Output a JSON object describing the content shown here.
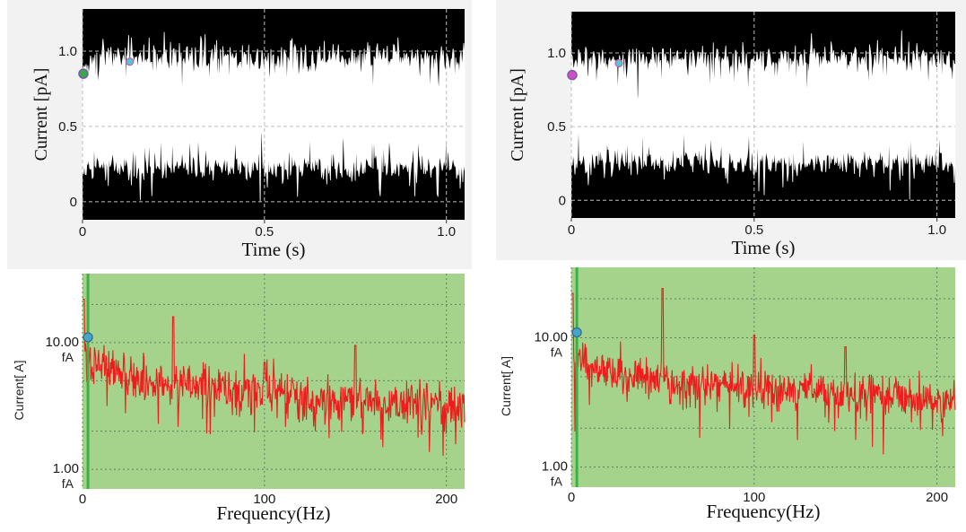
{
  "chart_data": [
    {
      "type": "line",
      "title": "",
      "xlabel": "Time (s)",
      "ylabel": "Current [pA]",
      "xlim": [
        0,
        1.05
      ],
      "ylim": [
        -0.12,
        1.28
      ],
      "xticks": [
        "0",
        "0.5",
        "1.0"
      ],
      "yticks": [
        "0",
        "0.5",
        "1.0"
      ],
      "xtick_values": [
        0,
        0.5,
        1.0
      ],
      "ytick_values": [
        0,
        0.5,
        1.0
      ],
      "grid": true,
      "trace": {
        "open_level": 0.95,
        "closed_level": 0.05,
        "open_noise": 0.16,
        "closed_noise": 0.15,
        "open_events": [
          [
            0.0,
            1.05
          ]
        ],
        "closed_band_shown": true
      },
      "colors": {
        "background": "#000000",
        "trace": "#ffffff",
        "grid": "#bdbdbd",
        "cursor_a": "#3aa84a",
        "cursor_b": "#53c7d8"
      }
    },
    {
      "type": "line",
      "title": "",
      "xlabel": "Time (s)",
      "ylabel": "Current [pA]",
      "xlim": [
        0,
        1.05
      ],
      "ylim": [
        -0.12,
        1.28
      ],
      "xticks": [
        "0",
        "0.5",
        "1.0"
      ],
      "yticks": [
        "0",
        "0.5",
        "1.0"
      ],
      "xtick_values": [
        0,
        0.5,
        1.0
      ],
      "ytick_values": [
        0,
        0.5,
        1.0
      ],
      "grid": true,
      "trace": {
        "open_level": 0.95,
        "closed_level": 0.08,
        "open_noise": 0.15,
        "closed_noise": 0.16,
        "open_events": [
          [
            0.0,
            1.05
          ]
        ],
        "closed_band_shown": true
      },
      "colors": {
        "background": "#000000",
        "trace": "#ffffff",
        "grid": "#bdbdbd",
        "cursor_a": "#d04fc4",
        "cursor_b": "#53c7d8"
      }
    },
    {
      "type": "line",
      "title": "",
      "xlabel": "Frequency(Hz)",
      "ylabel": "Current[ A]",
      "scale_y": "log",
      "xlim": [
        0,
        210
      ],
      "ylim": [
        0.7,
        35
      ],
      "xticks": [
        "0",
        "100",
        "200"
      ],
      "xtick_values": [
        0,
        100,
        200
      ],
      "yticks": [
        "10.00",
        "1.00"
      ],
      "ytick_values": [
        10,
        1
      ],
      "ytick_unit": "fA",
      "grid": true,
      "spectrum": {
        "baseline": [
          [
            0,
            7.5
          ],
          [
            30,
            5.2
          ],
          [
            60,
            4.6
          ],
          [
            100,
            4.2
          ],
          [
            140,
            3.6
          ],
          [
            180,
            3.3
          ],
          [
            210,
            3.1
          ]
        ],
        "noise_db": 0.45,
        "peaks": [
          [
            50,
            16
          ],
          [
            150,
            9.5
          ],
          [
            100,
            7
          ]
        ]
      },
      "colors": {
        "background": "#a6d38c",
        "trace": "#ee1c1c",
        "grid": "#5f7f5f",
        "marker_line": "#3cb043",
        "cursor": "#4aa3c8"
      }
    },
    {
      "type": "line",
      "title": "",
      "xlabel": "Frequency(Hz)",
      "ylabel": "Current[ A]",
      "scale_y": "log",
      "xlim": [
        0,
        210
      ],
      "ylim": [
        0.7,
        35
      ],
      "xticks": [
        "0",
        "100",
        "200"
      ],
      "xtick_values": [
        0,
        100,
        200
      ],
      "yticks": [
        "10.00",
        "1.00"
      ],
      "ytick_values": [
        10,
        1
      ],
      "ytick_unit": "fA",
      "grid": true,
      "spectrum": {
        "baseline": [
          [
            0,
            7.0
          ],
          [
            30,
            5.0
          ],
          [
            60,
            4.5
          ],
          [
            100,
            4.3
          ],
          [
            140,
            3.8
          ],
          [
            180,
            3.5
          ],
          [
            210,
            3.2
          ]
        ],
        "noise_db": 0.4,
        "peaks": [
          [
            50,
            24
          ],
          [
            100,
            10.5
          ],
          [
            150,
            8.5
          ]
        ]
      },
      "colors": {
        "background": "#a6d38c",
        "trace": "#ee1c1c",
        "grid": "#5f7f5f",
        "marker_line": "#3cb043",
        "cursor": "#4aa3c8"
      }
    }
  ]
}
